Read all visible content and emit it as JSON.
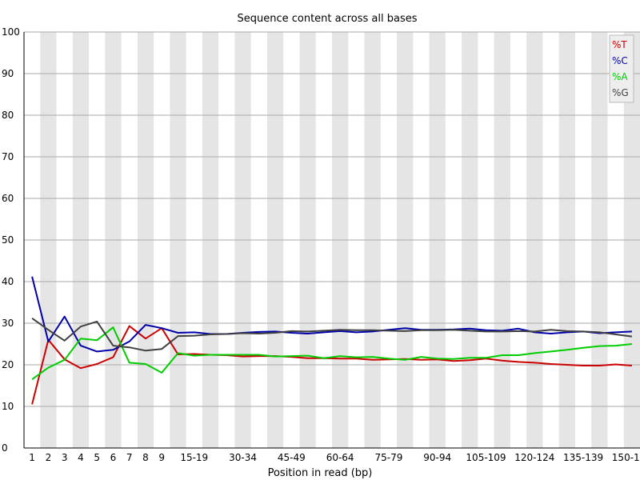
{
  "chart_data": {
    "type": "line",
    "title": "Sequence content across all bases",
    "xlabel": "Position in read (bp)",
    "ylabel": "",
    "ylim": [
      0,
      100
    ],
    "yticks": [
      0,
      10,
      20,
      30,
      40,
      50,
      60,
      70,
      80,
      90,
      100
    ],
    "grid": "horizontal lines, alternating grey column bands",
    "legend_position": "top-right",
    "categories": [
      "1",
      "2",
      "3",
      "4",
      "5",
      "6",
      "7",
      "8",
      "9",
      "10-14",
      "15-19",
      "20-24",
      "25-29",
      "30-34",
      "35-39",
      "40-44",
      "45-49",
      "50-54",
      "55-59",
      "60-64",
      "65-69",
      "70-74",
      "75-79",
      "80-84",
      "85-89",
      "90-94",
      "95-99",
      "100-104",
      "105-109",
      "110-114",
      "115-119",
      "120-124",
      "125-129",
      "130-134",
      "135-139",
      "140-144",
      "145-149",
      "150-151"
    ],
    "xtick_labels": [
      "1",
      "2",
      "3",
      "4",
      "5",
      "6",
      "7",
      "8",
      "9",
      "15-19",
      "30-34",
      "45-49",
      "60-64",
      "75-79",
      "90-94",
      "105-109",
      "120-124",
      "135-139",
      "150-151"
    ],
    "series": [
      {
        "name": "%T",
        "color": "#cc0000",
        "values": [
          10.5,
          26,
          21.3,
          19.2,
          20.2,
          21.8,
          29.3,
          26.3,
          28.8,
          22.5,
          22.6,
          22.4,
          22.3,
          22.0,
          22.1,
          22.1,
          21.9,
          21.6,
          21.6,
          21.5,
          21.5,
          21.2,
          21.3,
          21.4,
          21.2,
          21.3,
          20.9,
          21.1,
          21.5,
          21.0,
          20.7,
          20.5,
          20.2,
          20.0,
          19.8,
          19.8,
          20.1,
          19.8
        ]
      },
      {
        "name": "%C",
        "color": "#0000aa",
        "values": [
          41.2,
          25.6,
          31.6,
          24.6,
          23.2,
          23.6,
          25.6,
          29.6,
          28.8,
          27.7,
          27.8,
          27.4,
          27.4,
          27.7,
          27.9,
          28.0,
          27.7,
          27.5,
          27.8,
          28.1,
          27.8,
          28.0,
          28.4,
          28.8,
          28.4,
          28.4,
          28.5,
          28.7,
          28.3,
          28.2,
          28.7,
          27.8,
          27.5,
          27.8,
          28.0,
          27.6,
          27.8,
          28.0
        ]
      },
      {
        "name": "%A",
        "color": "#00cc00",
        "values": [
          16.5,
          19.3,
          21.2,
          26.3,
          25.9,
          29.0,
          20.5,
          20.2,
          18.1,
          22.8,
          22.2,
          22.4,
          22.4,
          22.4,
          22.4,
          22.0,
          22.1,
          22.2,
          21.6,
          22.1,
          21.8,
          21.9,
          21.5,
          21.2,
          21.9,
          21.5,
          21.4,
          21.7,
          21.7,
          22.3,
          22.3,
          22.8,
          23.2,
          23.6,
          24.1,
          24.5,
          24.6,
          25.0
        ]
      },
      {
        "name": "%G",
        "color": "#404040",
        "values": [
          31.2,
          28.4,
          25.8,
          29.2,
          30.4,
          24.6,
          24.2,
          23.4,
          23.8,
          26.9,
          27.0,
          27.3,
          27.4,
          27.6,
          27.5,
          27.7,
          28.1,
          28.0,
          28.2,
          28.4,
          28.3,
          28.3,
          28.2,
          28.1,
          28.3,
          28.3,
          28.4,
          28.2,
          28.0,
          28.0,
          28.1,
          28.0,
          28.4,
          28.1,
          28.0,
          27.8,
          27.3,
          26.8
        ]
      }
    ]
  }
}
